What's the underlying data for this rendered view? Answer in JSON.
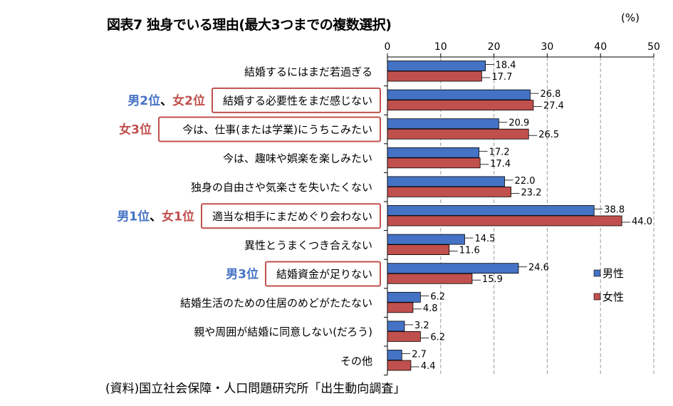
{
  "header": {
    "title": "図表7  独身でいる理由(最大3つまでの複数選択)",
    "unit": "(%)"
  },
  "footer": {
    "source": "(資料)国立社会保障・人口問題研究所「出生動向調査」"
  },
  "colors": {
    "male": "#4472c4",
    "female": "#c0504d",
    "male_rank": "#4472c4",
    "female_rank": "#c0504d",
    "highlight_box": "#c0504d"
  },
  "chart_data": {
    "type": "bar",
    "orientation": "horizontal",
    "categories": [
      "結婚するにはまだ若過ぎる",
      "結婚する必要性をまだ感じない",
      "今は、仕事(または学業)にうちこみたい",
      "今は、趣味や娯楽を楽しみたい",
      "独身の自由さや気楽さを失いたくない",
      "適当な相手にまだめぐり会わない",
      "異性とうまくつき合えない",
      "結婚資金が足りない",
      "結婚生活のための住居のめどがたたない",
      "親や周囲が結婚に同意しない(だろう)",
      "その他"
    ],
    "series": [
      {
        "name": "男性",
        "values": [
          18.4,
          26.8,
          20.9,
          17.2,
          22.0,
          38.8,
          14.5,
          24.6,
          6.2,
          3.2,
          2.7
        ]
      },
      {
        "name": "女性",
        "values": [
          17.7,
          27.4,
          26.5,
          17.4,
          23.2,
          44.0,
          11.6,
          15.9,
          4.8,
          6.2,
          4.4
        ]
      }
    ],
    "value_labels": [
      [
        "18.4",
        "26.8",
        "20.9",
        "17.2",
        "22.0",
        "38.8",
        "14.5",
        "24.6",
        "6.2",
        "3.2",
        "2.7"
      ],
      [
        "17.7",
        "27.4",
        "26.5",
        "17.4",
        "23.2",
        "44.0",
        "11.6",
        "15.9",
        "4.8",
        "6.2",
        "4.4"
      ]
    ],
    "xlim": [
      0,
      50
    ],
    "xticks": [
      0,
      10,
      20,
      30,
      40,
      50
    ],
    "tick_labels": [
      "0",
      "10",
      "20",
      "30",
      "40",
      "50"
    ],
    "grid": "vertical-dashed",
    "legend": "right",
    "rank_annotations": [
      {
        "category_index": 1,
        "parts": [
          {
            "text": "男2位",
            "who": "male"
          },
          {
            "text": "、",
            "who": "none"
          },
          {
            "text": "女2位",
            "who": "female"
          }
        ]
      },
      {
        "category_index": 2,
        "parts": [
          {
            "text": "女3位",
            "who": "female"
          }
        ]
      },
      {
        "category_index": 5,
        "parts": [
          {
            "text": "男1位",
            "who": "male"
          },
          {
            "text": "、",
            "who": "none"
          },
          {
            "text": "女1位",
            "who": "female"
          }
        ]
      },
      {
        "category_index": 7,
        "parts": [
          {
            "text": "男3位",
            "who": "male"
          }
        ]
      }
    ]
  }
}
